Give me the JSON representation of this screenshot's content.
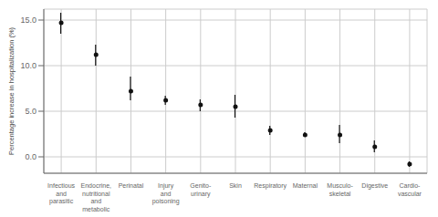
{
  "chart_data": {
    "type": "scatter",
    "categories": [
      "Infectious\nand\nparasitic",
      "Endocrine,\nnutritional\nand\nmetabolic",
      "Perinatal",
      "Injury\nand\npoisoning",
      "Genito-\nurinary",
      "Skin",
      "Respiratory",
      "Maternal",
      "Musculo-\nskeletal",
      "Digestive",
      "Cardio-\nvascular"
    ],
    "values": [
      14.7,
      11.2,
      7.2,
      6.2,
      5.7,
      5.5,
      2.9,
      2.4,
      2.4,
      1.1,
      -0.8
    ],
    "ci_lower": [
      13.5,
      10.0,
      6.2,
      5.7,
      5.0,
      4.3,
      2.4,
      2.2,
      1.5,
      0.5,
      -1.1
    ],
    "ci_upper": [
      15.8,
      12.3,
      8.8,
      6.7,
      6.3,
      6.8,
      3.4,
      2.7,
      3.5,
      1.8,
      -0.5
    ],
    "ylabel": "Percentage increase in hospitalization (%)",
    "ylim": [
      -1.8,
      16.2
    ],
    "yticks": [
      {
        "value": 0.0,
        "label": "0.0"
      },
      {
        "value": 5.0,
        "label": "5.0"
      },
      {
        "value": 10.0,
        "label": "10.0"
      },
      {
        "value": 15.0,
        "label": "15.0"
      }
    ],
    "color": "#111111",
    "grid": true
  }
}
